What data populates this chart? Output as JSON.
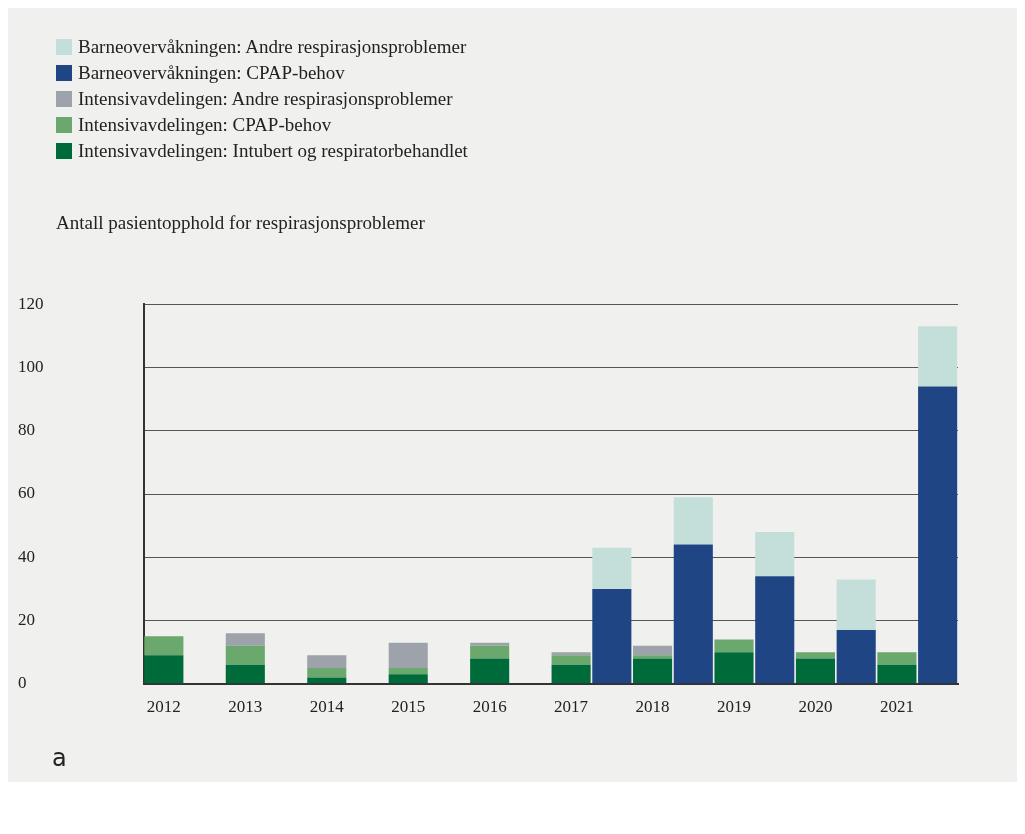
{
  "chart_data": {
    "type": "bar",
    "stacked": true,
    "ylabel": "Antall pasientopphold for respirasjonsproblemer",
    "categories": [
      "2012",
      null,
      "2013",
      null,
      "2014",
      null,
      "2015",
      null,
      "2016",
      null,
      "2017",
      null,
      "2018",
      null,
      "2019",
      null,
      "2020",
      null,
      "2021",
      null
    ],
    "series": [
      {
        "name": "Intensivavdelingen: Intubert og respiratorbehandlet",
        "color": "#006b3a",
        "values": [
          9,
          null,
          6,
          null,
          2,
          null,
          3,
          null,
          8,
          null,
          6,
          null,
          8,
          null,
          10,
          null,
          8,
          null,
          6,
          null
        ]
      },
      {
        "name": "Intensivavdelingen: CPAP-behov",
        "color": "#6aa86e",
        "values": [
          6,
          null,
          6,
          null,
          3,
          null,
          2,
          null,
          4,
          null,
          3,
          null,
          1,
          null,
          4,
          null,
          2,
          null,
          4,
          null
        ]
      },
      {
        "name": "Intensivavdelingen: Andre respirasjonsproblemer",
        "color": "#9ea3ab",
        "values": [
          null,
          null,
          4,
          null,
          4,
          null,
          8,
          null,
          1,
          null,
          1,
          null,
          3,
          null,
          null,
          null,
          null,
          null,
          null,
          null
        ]
      },
      {
        "name": "Barneovervåkningen: CPAP-behov",
        "color": "#1f4584",
        "values": [
          null,
          null,
          null,
          null,
          null,
          null,
          null,
          null,
          null,
          null,
          null,
          30,
          null,
          44,
          null,
          34,
          null,
          17,
          null,
          94
        ]
      },
      {
        "name": "Barneovervåkningen: Andre respirasjonsproblemer",
        "color": "#c4dfda",
        "values": [
          null,
          null,
          null,
          null,
          null,
          null,
          null,
          null,
          null,
          null,
          null,
          13,
          null,
          15,
          null,
          14,
          null,
          16,
          null,
          19
        ]
      }
    ],
    "ylim": [
      0,
      120
    ],
    "yticks": [
      0,
      20,
      40,
      60,
      80,
      100,
      120
    ],
    "grid": "y",
    "legend": "top left",
    "annotations": [
      "a"
    ]
  }
}
